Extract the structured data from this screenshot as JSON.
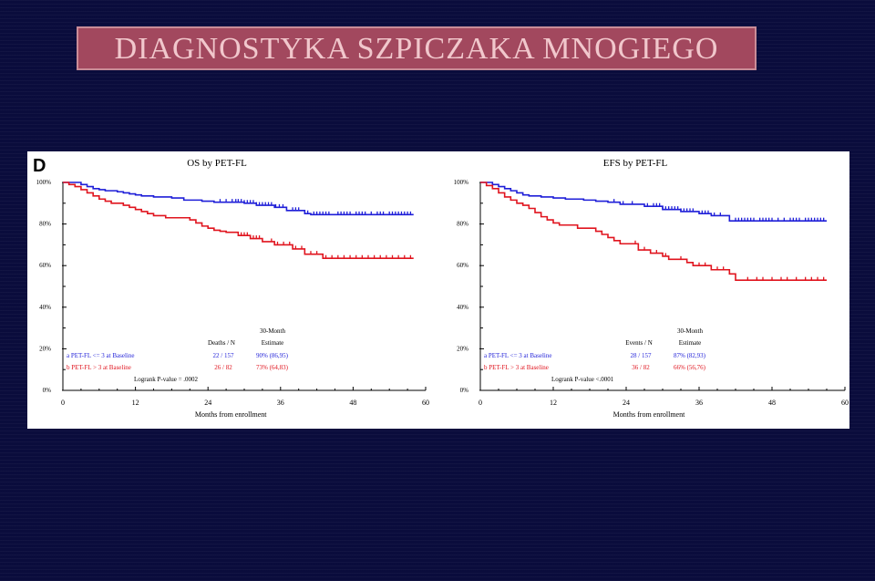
{
  "slide": {
    "title": "DIAGNOSTYKA SZPICZAKA MNOGIEGO",
    "panel_letter": "D"
  },
  "colors": {
    "background": "#0a0c3c",
    "title_fill": "#a2485e",
    "title_text": "#f1c7cc",
    "series_a": "#1f1fd8",
    "series_b": "#e0141e"
  },
  "chart_data": [
    {
      "type": "line",
      "title": "OS by PET-FL",
      "xlabel": "Months from enrollment",
      "ylabel": "",
      "xlim": [
        0,
        60
      ],
      "ylim": [
        0,
        100
      ],
      "x_ticks": [
        "0",
        "12",
        "24",
        "36",
        "48",
        "60"
      ],
      "y_ticks": [
        "0%",
        "20%",
        "40%",
        "60%",
        "80%",
        "100%"
      ],
      "legend_header": {
        "col1": "Deaths / N",
        "col2_line1": "30-Month",
        "col2_line2": "Estimate"
      },
      "series": [
        {
          "name": "a PET-FL <= 3 at Baseline",
          "color": "#1f1fd8",
          "count": "22 / 157",
          "estimate": "90%  (86,95)",
          "x": [
            0,
            3,
            4,
            5,
            6,
            7,
            9,
            10,
            11,
            12,
            13,
            15,
            18,
            20,
            23,
            25,
            30,
            32,
            35,
            37,
            40,
            41,
            58
          ],
          "y": [
            100,
            99,
            98,
            97,
            96.5,
            96,
            95.5,
            95,
            94.5,
            94,
            93.5,
            93,
            92.5,
            91.5,
            91,
            90.5,
            90,
            89,
            88,
            86.5,
            85,
            84.5,
            84.5
          ],
          "censor_x": [
            26,
            27,
            28,
            28.6,
            29,
            29.5,
            30,
            30.5,
            31,
            31.5,
            32,
            32.5,
            33,
            33.5,
            34,
            34.5,
            35.2,
            35.8,
            36.4,
            38,
            38.5,
            39,
            40.5,
            41.5,
            42,
            42.5,
            43,
            43.5,
            44,
            45.5,
            46,
            46.5,
            47,
            47.5,
            48.5,
            49,
            49.5,
            50,
            51,
            52,
            52.5,
            53,
            54,
            54.5,
            55,
            55.5,
            56,
            56.5,
            57,
            57.5
          ]
        },
        {
          "name": "b PET-FL > 3 at Baseline",
          "color": "#e0141e",
          "count": "26 / 82",
          "estimate": "73%  (64,83)",
          "x": [
            0,
            1,
            2,
            3,
            4,
            5,
            6,
            7,
            8,
            10,
            11,
            12,
            13,
            14,
            15,
            17,
            21,
            22,
            23,
            24,
            25,
            26,
            27,
            29,
            31,
            33,
            35,
            38,
            40,
            43,
            58
          ],
          "y": [
            100,
            99,
            98,
            96.5,
            95,
            93.5,
            92,
            91,
            90,
            89,
            88,
            87,
            86,
            85,
            84,
            83,
            82,
            80.5,
            79,
            78,
            77,
            76.5,
            76,
            74.5,
            73,
            71.5,
            70,
            68,
            65.5,
            63.5,
            63.5
          ],
          "censor_x": [
            29.5,
            30,
            30.5,
            31,
            31.5,
            32,
            32.5,
            34.5,
            35.5,
            36.5,
            37.5,
            38.5,
            39.5,
            41,
            42,
            43.5,
            44.5,
            45.5,
            46.5,
            47.5,
            48.5,
            49.5,
            50.5,
            51.5,
            52.5,
            53.5,
            54.5,
            55.5,
            56.5,
            57.5
          ]
        }
      ],
      "pvalue": "Logrank P-value = .0002"
    },
    {
      "type": "line",
      "title": "EFS by PET-FL",
      "xlabel": "Months from enrollment",
      "ylabel": "",
      "xlim": [
        0,
        60
      ],
      "ylim": [
        0,
        100
      ],
      "x_ticks": [
        "0",
        "12",
        "24",
        "36",
        "48",
        "60"
      ],
      "y_ticks": [
        "0%",
        "20%",
        "40%",
        "60%",
        "80%",
        "100%"
      ],
      "legend_header": {
        "col1": "Events / N",
        "col2_line1": "30-Month",
        "col2_line2": "Estimate"
      },
      "series": [
        {
          "name": "a PET-FL <= 3 at Baseline",
          "color": "#1f1fd8",
          "count": "28 / 157",
          "estimate": "87%  (82,93)",
          "x": [
            0,
            2,
            3,
            4,
            5,
            6,
            7,
            8,
            10,
            12,
            14,
            17,
            19,
            21,
            23,
            27,
            30,
            33,
            36,
            38,
            41,
            57
          ],
          "y": [
            100,
            99,
            98,
            97,
            96,
            95,
            94,
            93.5,
            93,
            92.5,
            92,
            91.5,
            91,
            90.5,
            89.5,
            88.5,
            87,
            86,
            85,
            84,
            81.5,
            81.5
          ],
          "censor_x": [
            22,
            23.5,
            25,
            27.5,
            28.5,
            29,
            29.5,
            30,
            30.5,
            31,
            31.5,
            32,
            32.5,
            33,
            33.5,
            34,
            34.5,
            35,
            36.5,
            37,
            37.5,
            38.5,
            39.5,
            42,
            42.5,
            43,
            43.5,
            44,
            44.5,
            45,
            46,
            46.5,
            47,
            47.5,
            48,
            49,
            50,
            51,
            51.5,
            52,
            52.5,
            53.5,
            54,
            54.5,
            55,
            55.5,
            56,
            56.5
          ]
        },
        {
          "name": "b PET-FL > 3 at Baseline",
          "color": "#e0141e",
          "count": "36 / 82",
          "estimate": "66%  (56,76)",
          "x": [
            0,
            1,
            2,
            3,
            4,
            5,
            6,
            7,
            8,
            9,
            10,
            11,
            12,
            13,
            16,
            19,
            20,
            21,
            22,
            23,
            26,
            28,
            30,
            31,
            34,
            35,
            38,
            41,
            42,
            57
          ],
          "y": [
            100,
            98.5,
            97,
            95,
            93,
            91.5,
            90,
            89,
            87.5,
            85.5,
            83.5,
            82,
            80.5,
            79.5,
            78,
            76.5,
            75,
            73.5,
            72,
            70.5,
            67.5,
            66,
            64.5,
            63,
            61.5,
            60,
            58,
            56,
            53,
            53
          ],
          "censor_x": [
            25.5,
            27,
            29,
            30.5,
            33,
            36,
            37,
            39,
            40,
            41,
            44,
            45.5,
            46.5,
            48,
            49.5,
            50.5,
            52,
            53.5,
            54.5,
            55.5,
            56.5
          ]
        }
      ],
      "pvalue": "Logrank P-value <.0001"
    }
  ]
}
